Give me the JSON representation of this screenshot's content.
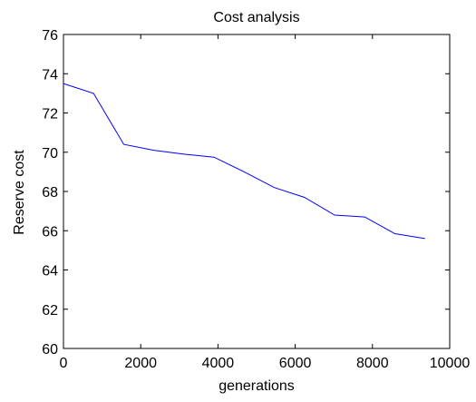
{
  "chart_data": {
    "type": "line",
    "title": "Cost analysis",
    "xlabel": "generations",
    "ylabel": "Reserve cost",
    "xlim": [
      0,
      10000
    ],
    "ylim": [
      60,
      76
    ],
    "xticks": [
      0,
      2000,
      4000,
      6000,
      8000,
      10000
    ],
    "yticks": [
      60,
      62,
      64,
      66,
      68,
      70,
      72,
      74,
      76
    ],
    "grid": false,
    "colors": {
      "line": "#0000ff",
      "axes": "#000000",
      "background": "#ffffff"
    },
    "series": [
      {
        "x": [
          0,
          780,
          1560,
          2340,
          3120,
          3900,
          4680,
          5460,
          6240,
          7020,
          7800,
          8580,
          9360
        ],
        "y": [
          73.5,
          73.0,
          70.4,
          70.1,
          69.9,
          69.75,
          69.0,
          68.2,
          67.7,
          66.8,
          66.7,
          65.85,
          65.6
        ]
      }
    ]
  }
}
